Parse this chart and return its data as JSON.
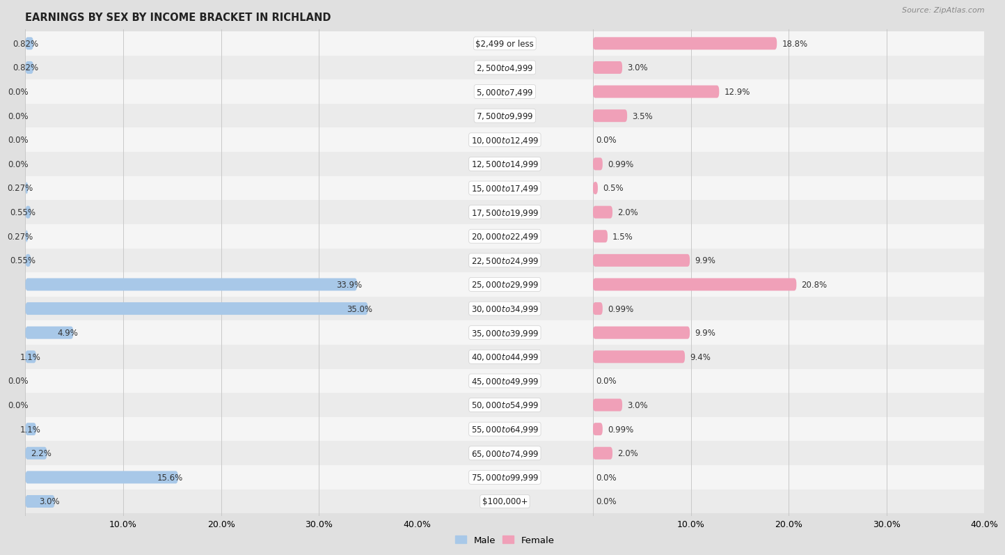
{
  "title": "EARNINGS BY SEX BY INCOME BRACKET IN RICHLAND",
  "source": "Source: ZipAtlas.com",
  "categories": [
    "$2,499 or less",
    "$2,500 to $4,999",
    "$5,000 to $7,499",
    "$7,500 to $9,999",
    "$10,000 to $12,499",
    "$12,500 to $14,999",
    "$15,000 to $17,499",
    "$17,500 to $19,999",
    "$20,000 to $22,499",
    "$22,500 to $24,999",
    "$25,000 to $29,999",
    "$30,000 to $34,999",
    "$35,000 to $39,999",
    "$40,000 to $44,999",
    "$45,000 to $49,999",
    "$50,000 to $54,999",
    "$55,000 to $64,999",
    "$65,000 to $74,999",
    "$75,000 to $99,999",
    "$100,000+"
  ],
  "male_values": [
    0.82,
    0.82,
    0.0,
    0.0,
    0.0,
    0.0,
    0.27,
    0.55,
    0.27,
    0.55,
    33.9,
    35.0,
    4.9,
    1.1,
    0.0,
    0.0,
    1.1,
    2.2,
    15.6,
    3.0
  ],
  "female_values": [
    18.8,
    3.0,
    12.9,
    3.5,
    0.0,
    0.99,
    0.5,
    2.0,
    1.5,
    9.9,
    20.8,
    0.99,
    9.9,
    9.4,
    0.0,
    3.0,
    0.99,
    2.0,
    0.0,
    0.0
  ],
  "male_color": "#a8c8e8",
  "female_color": "#f0a0b8",
  "male_label": "Male",
  "female_label": "Female",
  "xlim": 40.0,
  "row_bg_colors": [
    "#f5f5f5",
    "#ebebeb"
  ],
  "title_fontsize": 10.5,
  "val_fontsize": 8.5,
  "cat_fontsize": 8.5,
  "axis_fontsize": 9,
  "bar_height": 0.52
}
